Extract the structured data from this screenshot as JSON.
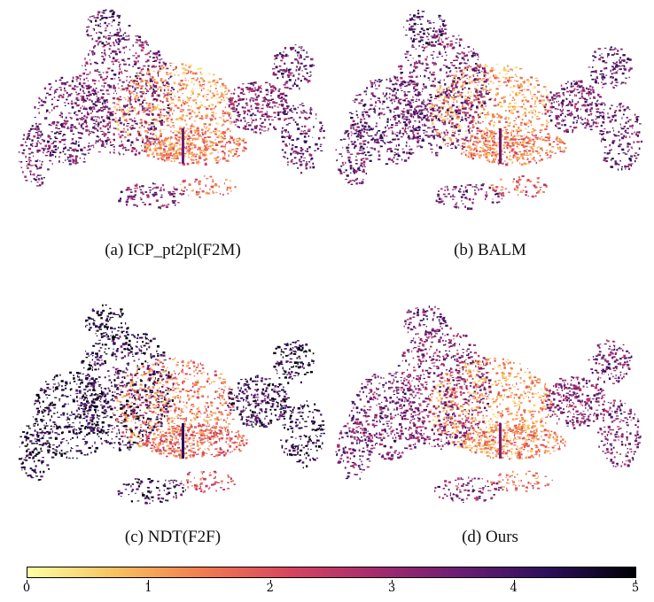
{
  "panels": [
    {
      "id": "a",
      "caption": "(a) ICP_pt2pl(F2M)",
      "darkness": 0.35
    },
    {
      "id": "b",
      "caption": "(b) BALM",
      "darkness": 0.4
    },
    {
      "id": "c",
      "caption": "(c) NDT(F2F)",
      "darkness": 0.85
    },
    {
      "id": "d",
      "caption": "(d) Ours",
      "darkness": 0.25
    }
  ],
  "colorbar": {
    "ticks": [
      "0",
      "1",
      "2",
      "3",
      "4",
      "5"
    ],
    "colormap": [
      "#fcffa4",
      "#f8c25f",
      "#f17d4f",
      "#d9455f",
      "#a62c6e",
      "#6a1d74",
      "#2c0f5a",
      "#000004"
    ]
  }
}
